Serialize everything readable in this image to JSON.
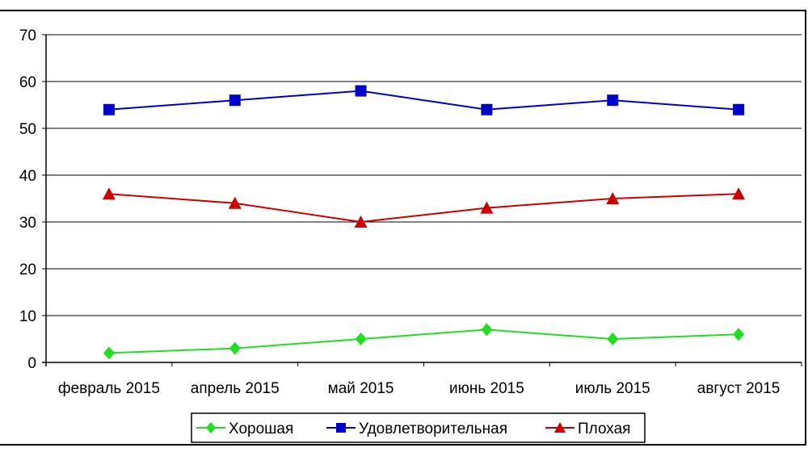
{
  "chart_data": {
    "type": "line",
    "title": "",
    "xlabel": "",
    "ylabel": "",
    "categories": [
      "февраль 2015",
      "апрель 2015",
      "май 2015",
      "июнь 2015",
      "июль 2015",
      "август 2015"
    ],
    "ylim": [
      0,
      70
    ],
    "yticks": [
      0,
      10,
      20,
      30,
      40,
      50,
      60,
      70
    ],
    "grid": true,
    "legend_position": "bottom",
    "series": [
      {
        "name": "Хорошая",
        "values": [
          2,
          3,
          5,
          7,
          5,
          6
        ],
        "color": "#22dd22",
        "marker": "diamond"
      },
      {
        "name": "Удовлетворительная",
        "values": [
          54,
          56,
          58,
          54,
          56,
          54
        ],
        "color": "#0000cc",
        "marker": "square"
      },
      {
        "name": "Плохая",
        "values": [
          36,
          34,
          30,
          33,
          35,
          36
        ],
        "color": "#cc0000",
        "marker": "triangle"
      }
    ]
  }
}
